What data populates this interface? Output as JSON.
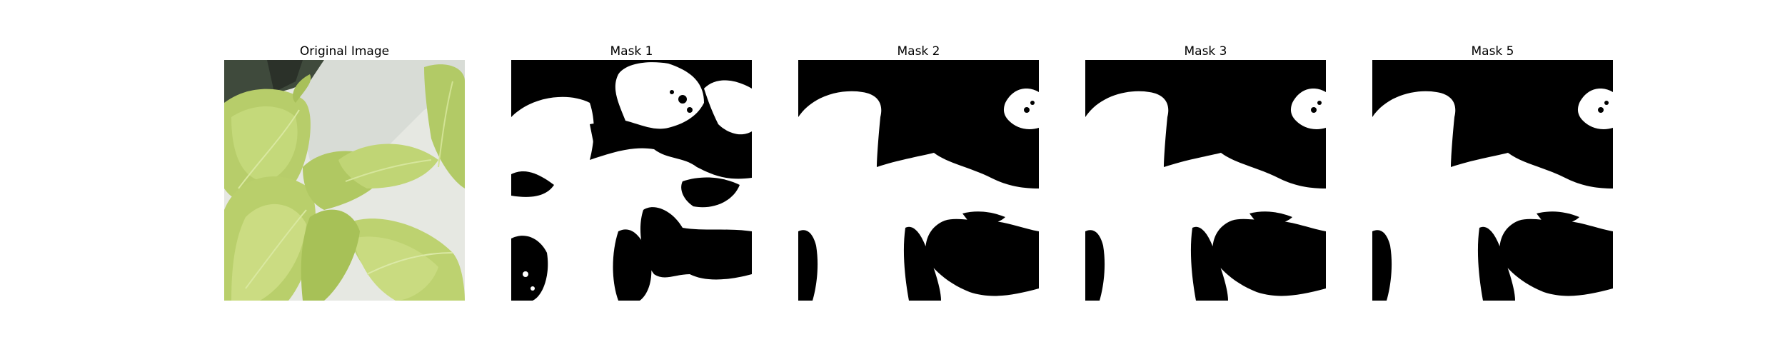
{
  "figure": {
    "panels": [
      {
        "title": "Original Image",
        "content": "photo"
      },
      {
        "title": "Mask 1",
        "content": "mask"
      },
      {
        "title": "Mask 2",
        "content": "mask"
      },
      {
        "title": "Mask 3",
        "content": "mask"
      },
      {
        "title": "Mask 5",
        "content": "mask"
      }
    ]
  },
  "colors": {
    "background": "#ffffff",
    "mask_foreground": "#ffffff",
    "mask_background": "#000000",
    "leaf_light": "#c9dd7e",
    "leaf_mid": "#a9c45a",
    "leaf_dark": "#7e9a3a",
    "bg_grey": "#dfe2dc"
  }
}
